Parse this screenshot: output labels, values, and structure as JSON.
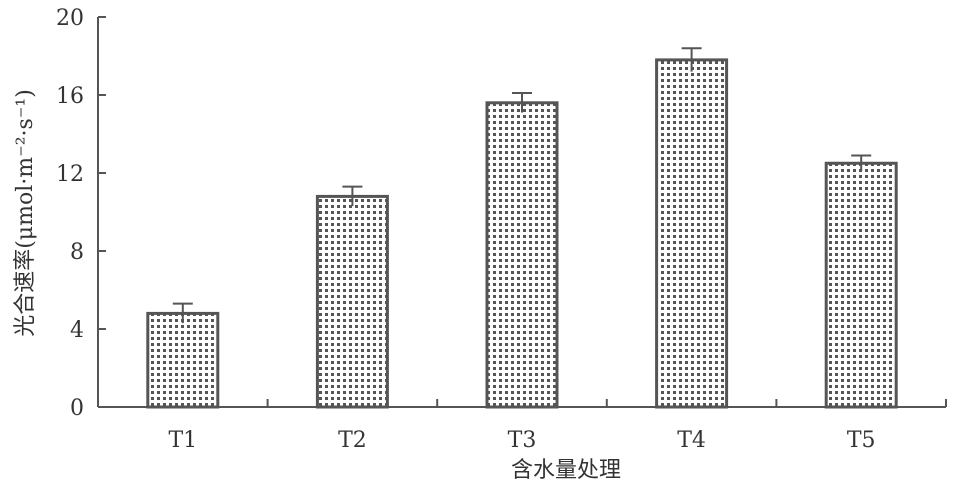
{
  "chart_data": {
    "type": "bar",
    "categories": [
      "T1",
      "T2",
      "T3",
      "T4",
      "T5"
    ],
    "values": [
      4.8,
      10.8,
      15.6,
      17.8,
      12.5
    ],
    "errors": [
      0.5,
      0.5,
      0.5,
      0.6,
      0.4
    ],
    "title": "",
    "xlabel": "含水量处理",
    "ylabel": "光合速率(μmol·m⁻²·s⁻¹)",
    "ylim": [
      0,
      20
    ],
    "yticks": [
      "0",
      "4",
      "8",
      "12",
      "16",
      "20"
    ],
    "grid": false,
    "bar_fill": "dotted pattern",
    "colors": {
      "axis": "#555555",
      "bar_dots": "#555555",
      "bar_background": "#ffffff",
      "text": "#333333"
    }
  }
}
